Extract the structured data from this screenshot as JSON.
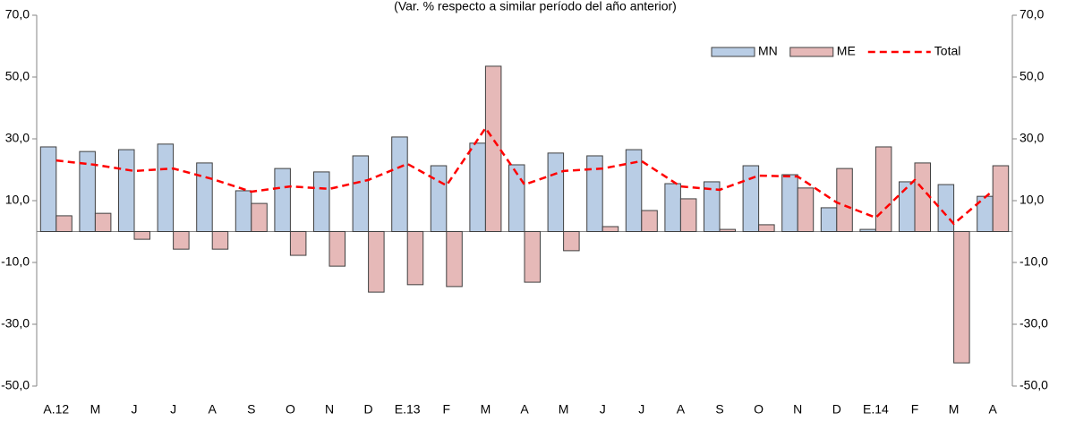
{
  "chart_data": {
    "type": "bar-line",
    "subtitle": "(Var. % respecto a similar período del año anterior)",
    "categories": [
      "A.12",
      "M",
      "J",
      "J",
      "A",
      "S",
      "O",
      "N",
      "D",
      "E.13",
      "F",
      "M",
      "A",
      "M",
      "J",
      "J",
      "A",
      "S",
      "O",
      "N",
      "D",
      "E.14",
      "F",
      "M",
      "A"
    ],
    "series": [
      {
        "name": "MN",
        "type": "bar",
        "color": "#b9cde5",
        "values": [
          27.4,
          25.9,
          26.5,
          28.3,
          22.2,
          13.2,
          20.4,
          19.3,
          24.5,
          30.6,
          21.3,
          28.6,
          21.6,
          25.4,
          24.5,
          26.5,
          15.5,
          16.1,
          21.3,
          18.4,
          7.7,
          0.7,
          16.1,
          15.2,
          11.4
        ]
      },
      {
        "name": "ME",
        "type": "bar",
        "color": "#e6b9b8",
        "values": [
          5.1,
          5.9,
          -2.5,
          -5.7,
          -5.7,
          9.1,
          -7.7,
          -11.2,
          -19.6,
          -17.2,
          -17.8,
          53.5,
          -16.4,
          -6.2,
          1.6,
          6.8,
          10.6,
          0.7,
          2.2,
          14.1,
          20.4,
          27.4,
          22.2,
          -42.5,
          21.3
        ]
      },
      {
        "name": "Total",
        "type": "line",
        "color": "#ff0000",
        "values": [
          23.0,
          21.6,
          19.6,
          20.4,
          17.0,
          12.9,
          14.6,
          13.8,
          16.7,
          21.9,
          14.9,
          33.5,
          15.2,
          19.6,
          20.4,
          22.8,
          14.6,
          13.5,
          18.1,
          17.8,
          9.4,
          4.5,
          16.7,
          2.5,
          13.2
        ]
      }
    ],
    "ylim": [
      -50,
      70
    ],
    "yticks": [
      {
        "value": -50,
        "label": "-50,0"
      },
      {
        "value": -30,
        "label": "-30,0"
      },
      {
        "value": -10,
        "label": "-10,0"
      },
      {
        "value": 10,
        "label": "10,0"
      },
      {
        "value": 30,
        "label": "30,0"
      },
      {
        "value": 50,
        "label": "50,0"
      },
      {
        "value": 70,
        "label": "70,0"
      }
    ],
    "y2lim": [
      -50,
      70
    ],
    "y2ticks": [
      {
        "value": -50,
        "label": "-50,0"
      },
      {
        "value": -30,
        "label": "-30,0"
      },
      {
        "value": -10,
        "label": "-10,0"
      },
      {
        "value": 10,
        "label": "10,0"
      },
      {
        "value": 30,
        "label": "30,0"
      },
      {
        "value": 50,
        "label": "50,0"
      },
      {
        "value": 70,
        "label": "70,0"
      }
    ],
    "legend": "top-right"
  }
}
